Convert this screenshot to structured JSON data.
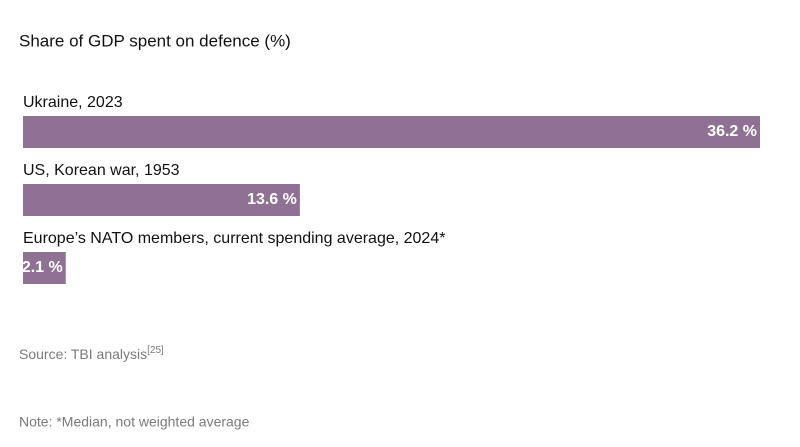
{
  "chart_data": {
    "type": "bar",
    "orientation": "horizontal",
    "title": "Share of GDP spent on defence (%)",
    "categories": [
      "Ukraine, 2023",
      "US, Korean war, 1953",
      "Europe’s NATO members, current spending average, 2024*"
    ],
    "values": [
      36.2,
      13.6,
      2.1
    ],
    "value_labels": [
      "36.2 %",
      "13.6 %",
      "2.1 %"
    ],
    "color": "#8f7193",
    "xlim": [
      0,
      36.2
    ],
    "source": "Source: TBI analysis",
    "source_ref": "[25]",
    "note": "Note: *Median, not weighted average"
  }
}
